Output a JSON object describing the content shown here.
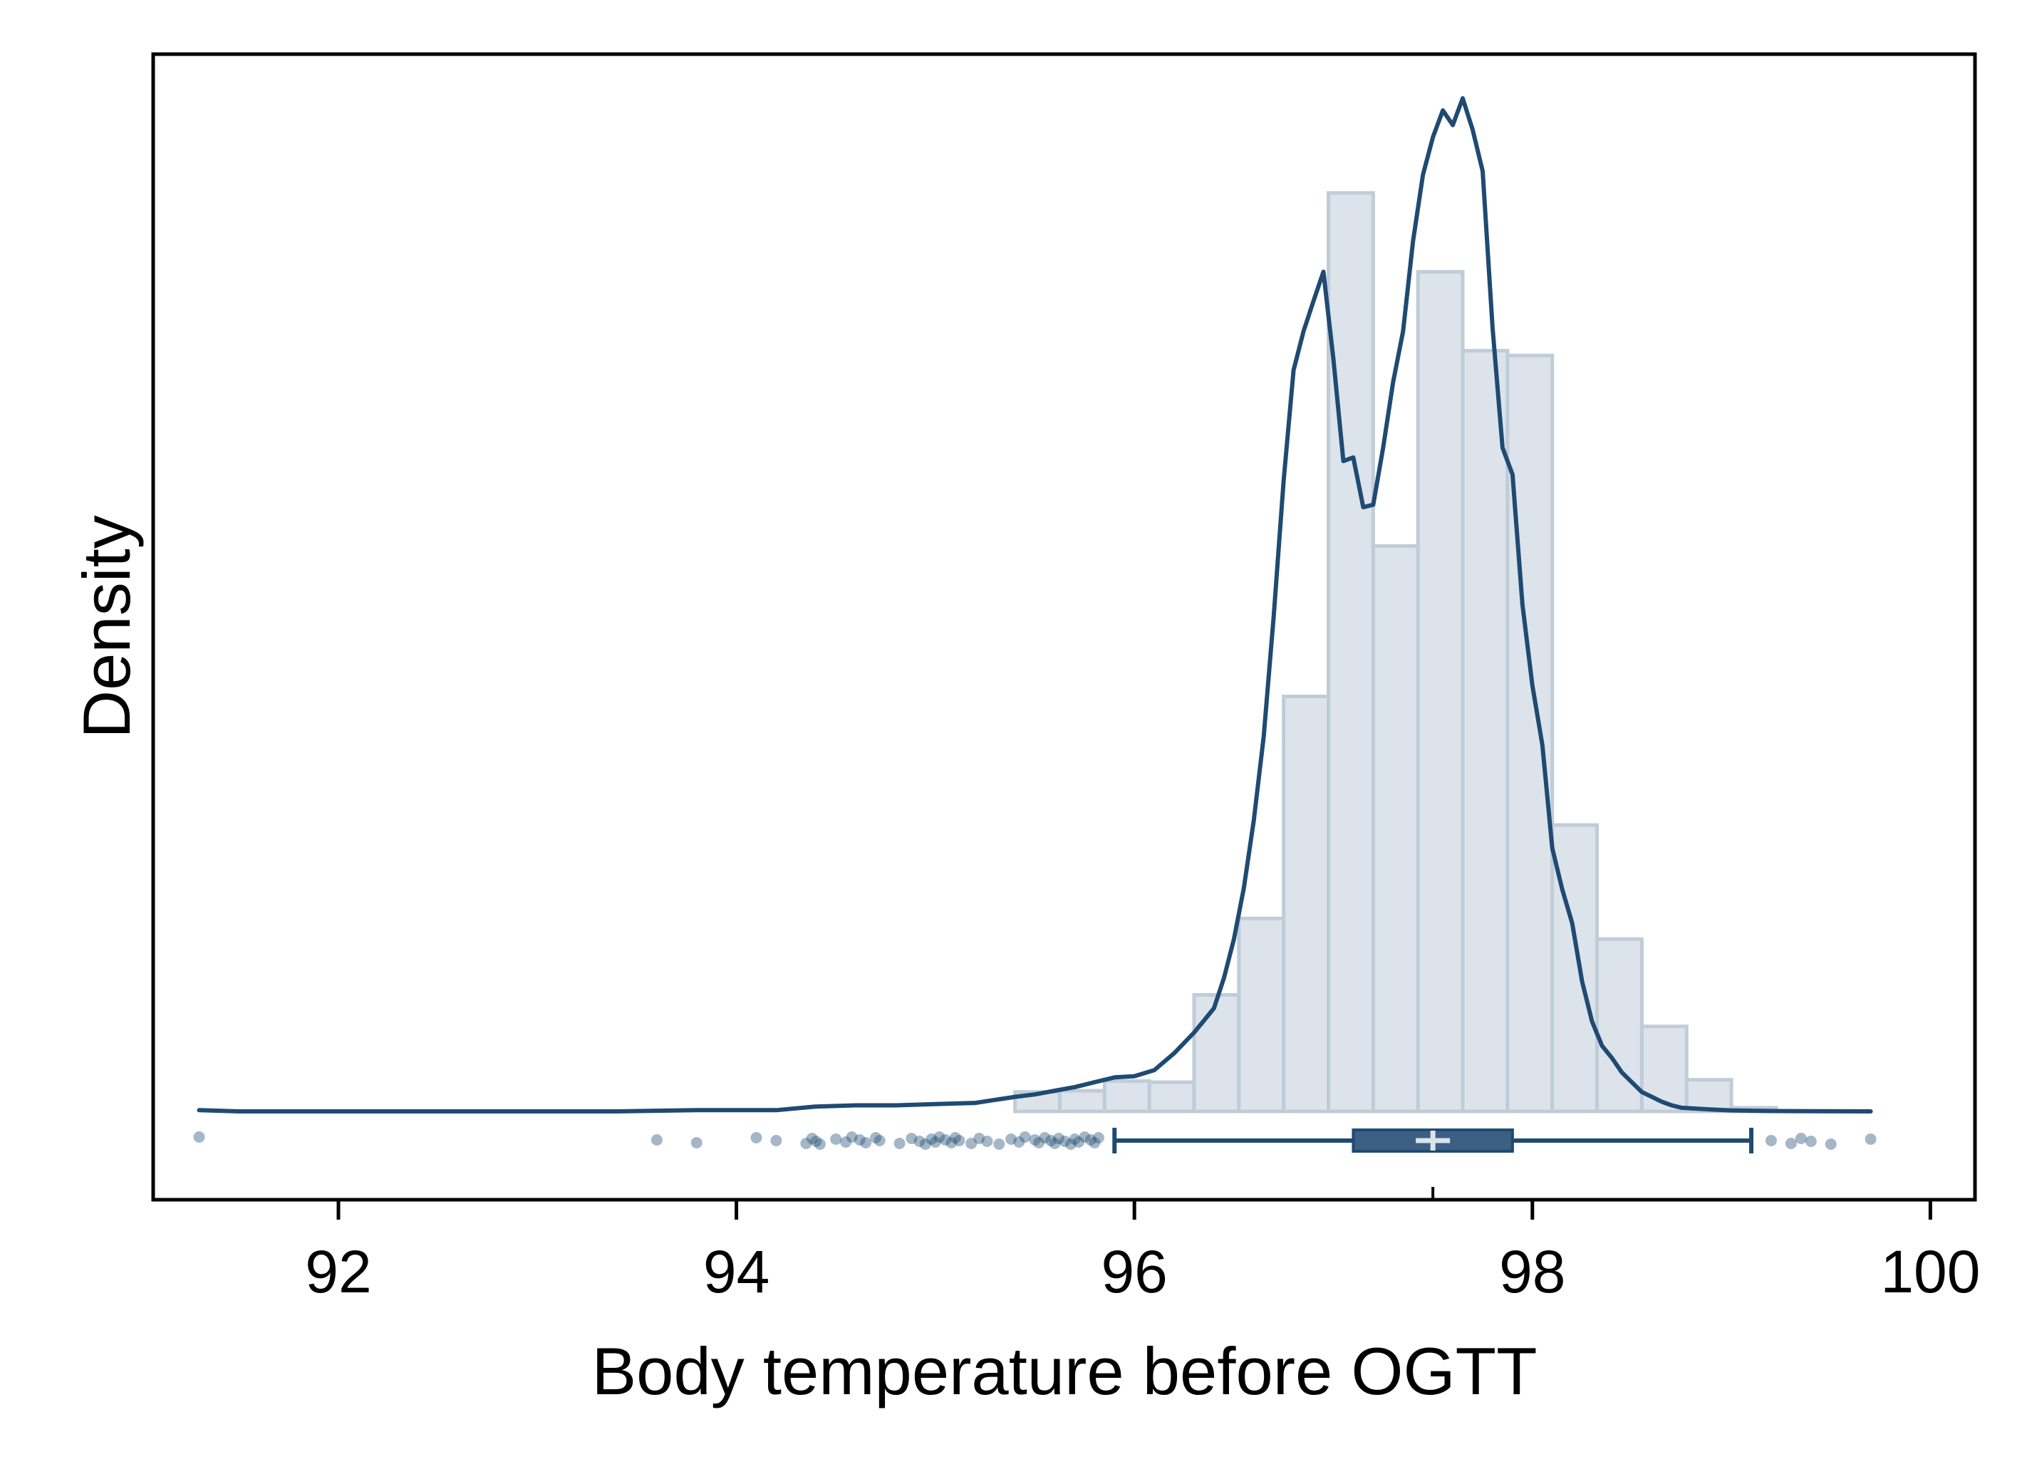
{
  "chart_data": {
    "type": "histogram",
    "xlabel": "Body temperature before OGTT",
    "ylabel": "Density",
    "xlim": [
      91.2,
      100.3
    ],
    "x_ticks": [
      "92",
      "94",
      "96",
      "98",
      "100"
    ],
    "y_ticks_labeled": false,
    "grid": false,
    "histogram": {
      "bin_width": 0.225,
      "bins": [
        {
          "x0": 95.4,
          "x1": 95.625,
          "density": 0.016
        },
        {
          "x0": 95.625,
          "x1": 95.85,
          "density": 0.017
        },
        {
          "x0": 95.85,
          "x1": 96.075,
          "density": 0.025
        },
        {
          "x0": 96.075,
          "x1": 96.3,
          "density": 0.024
        },
        {
          "x0": 96.3,
          "x1": 96.525,
          "density": 0.096
        },
        {
          "x0": 96.525,
          "x1": 96.75,
          "density": 0.159
        },
        {
          "x0": 96.75,
          "x1": 96.975,
          "density": 0.342
        },
        {
          "x0": 96.975,
          "x1": 97.2,
          "density": 0.757
        },
        {
          "x0": 97.2,
          "x1": 97.425,
          "density": 0.466
        },
        {
          "x0": 97.425,
          "x1": 97.65,
          "density": 0.692
        },
        {
          "x0": 97.65,
          "x1": 97.875,
          "density": 0.627
        },
        {
          "x0": 97.875,
          "x1": 98.1,
          "density": 0.623
        },
        {
          "x0": 98.1,
          "x1": 98.325,
          "density": 0.236
        },
        {
          "x0": 98.325,
          "x1": 98.55,
          "density": 0.142
        },
        {
          "x0": 98.55,
          "x1": 98.775,
          "density": 0.07
        },
        {
          "x0": 98.775,
          "x1": 99.0,
          "density": 0.026
        },
        {
          "x0": 99.0,
          "x1": 99.225,
          "density": 0.003
        }
      ]
    },
    "kde": {
      "x": [
        91.3,
        91.5,
        92.0,
        92.5,
        93.0,
        93.4,
        93.8,
        94.2,
        94.4,
        94.6,
        94.8,
        95.0,
        95.2,
        95.4,
        95.5,
        95.6,
        95.7,
        95.8,
        95.9,
        96.0,
        96.1,
        96.2,
        96.3,
        96.35,
        96.4,
        96.45,
        96.5,
        96.55,
        96.6,
        96.65,
        96.7,
        96.75,
        96.8,
        96.85,
        96.9,
        96.95,
        97.0,
        97.05,
        97.1,
        97.15,
        97.2,
        97.25,
        97.3,
        97.35,
        97.4,
        97.45,
        97.5,
        97.55,
        97.6,
        97.65,
        97.7,
        97.75,
        97.8,
        97.85,
        97.9,
        97.95,
        98.0,
        98.05,
        98.1,
        98.15,
        98.2,
        98.25,
        98.3,
        98.35,
        98.4,
        98.45,
        98.5,
        98.55,
        98.6,
        98.65,
        98.7,
        98.75,
        98.8,
        98.9,
        99.0,
        99.2,
        99.4,
        99.7
      ],
      "density": [
        0.001,
        0.0,
        0.0,
        0.0,
        0.0,
        0.0,
        0.001,
        0.001,
        0.004,
        0.005,
        0.005,
        0.006,
        0.007,
        0.012,
        0.014,
        0.017,
        0.02,
        0.024,
        0.028,
        0.029,
        0.034,
        0.048,
        0.065,
        0.075,
        0.085,
        0.11,
        0.142,
        0.184,
        0.24,
        0.309,
        0.408,
        0.52,
        0.611,
        0.643,
        0.668,
        0.692,
        0.62,
        0.536,
        0.539,
        0.498,
        0.5,
        0.547,
        0.601,
        0.643,
        0.717,
        0.772,
        0.803,
        0.825,
        0.813,
        0.835,
        0.809,
        0.775,
        0.646,
        0.547,
        0.525,
        0.418,
        0.351,
        0.302,
        0.217,
        0.183,
        0.155,
        0.107,
        0.074,
        0.054,
        0.044,
        0.032,
        0.024,
        0.016,
        0.012,
        0.008,
        0.005,
        0.003,
        0.0025,
        0.0015,
        0.0008,
        0.0003,
        0.0001,
        0.0
      ]
    },
    "boxplot": {
      "whisker_low": 95.9,
      "q1": 97.1,
      "median": 97.5,
      "q3": 97.9,
      "whisker_high": 99.1,
      "outliers": [
        91.3,
        93.6,
        93.8,
        94.1,
        94.2,
        94.35,
        94.38,
        94.4,
        94.42,
        94.5,
        94.55,
        94.58,
        94.62,
        94.65,
        94.7,
        94.72,
        94.82,
        94.88,
        94.92,
        94.95,
        94.98,
        95.0,
        95.02,
        95.05,
        95.08,
        95.1,
        95.12,
        95.18,
        95.22,
        95.26,
        95.32,
        95.38,
        95.42,
        95.45,
        95.5,
        95.52,
        95.55,
        95.58,
        95.6,
        95.62,
        95.65,
        95.68,
        95.7,
        95.72,
        95.75,
        95.78,
        95.8,
        95.82,
        99.2,
        99.3,
        99.35,
        99.4,
        99.5,
        99.7
      ]
    },
    "colors": {
      "bar_fill": "#dce3ea",
      "bar_edge": "#c0ccd8",
      "line": "#1f4a72",
      "box_fill": "#3c5f84",
      "median_mark": "#dce3ea",
      "outlier": "#1f4a72"
    }
  }
}
